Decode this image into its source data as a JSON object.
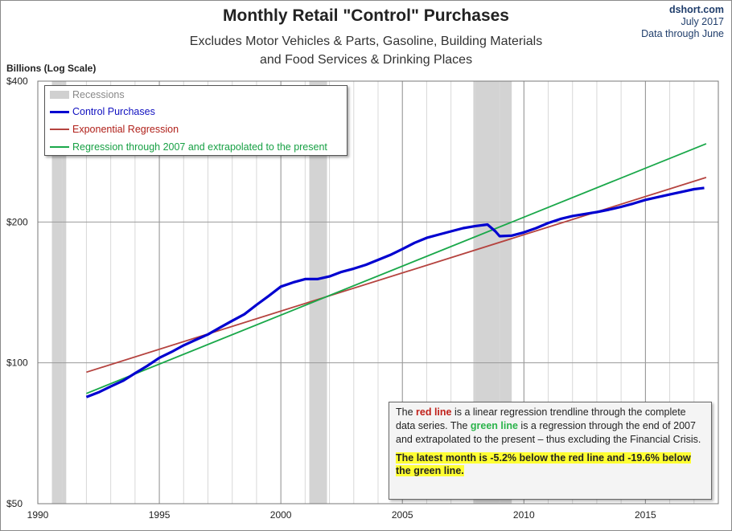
{
  "header": {
    "title": "Monthly Retail \"Control\" Purchases",
    "subtitle_line1": "Excludes Motor Vehicles & Parts, Gasoline, Building Materials",
    "subtitle_line2": "and Food Services & Drinking Places",
    "source_line1": "dshort.com",
    "source_line2": "July 2017",
    "source_line3": "Data through June"
  },
  "chart_data": {
    "type": "line",
    "title": "Monthly Retail \"Control\" Purchases",
    "ylabel": "Billions (Log Scale)",
    "xlabel": "",
    "y_scale": "log",
    "ylim": [
      50,
      400
    ],
    "xlim": [
      1990,
      2018
    ],
    "y_ticks": [
      {
        "value": 50,
        "label": "$50"
      },
      {
        "value": 100,
        "label": "$100"
      },
      {
        "value": 200,
        "label": "$200"
      },
      {
        "value": 400,
        "label": "$400"
      }
    ],
    "x_ticks": [
      {
        "value": 1990,
        "label": "1990"
      },
      {
        "value": 1995,
        "label": "1995"
      },
      {
        "value": 2000,
        "label": "2000"
      },
      {
        "value": 2005,
        "label": "2005"
      },
      {
        "value": 2010,
        "label": "2010"
      },
      {
        "value": 2015,
        "label": "2015"
      }
    ],
    "grid": true,
    "recessions": [
      [
        1990.58,
        1991.17
      ],
      [
        2001.17,
        2001.9
      ],
      [
        2007.92,
        2009.5
      ]
    ],
    "series": [
      {
        "name": "Control Purchases",
        "color": "#0000d0",
        "points": [
          [
            1992.0,
            84.5
          ],
          [
            1992.5,
            86.5
          ],
          [
            1993.0,
            89.0
          ],
          [
            1993.5,
            91.5
          ],
          [
            1994.0,
            95.0
          ],
          [
            1994.5,
            98.5
          ],
          [
            1995.0,
            102.5
          ],
          [
            1995.5,
            105.5
          ],
          [
            1996.0,
            109.0
          ],
          [
            1996.5,
            112.0
          ],
          [
            1997.0,
            115.0
          ],
          [
            1997.5,
            119.0
          ],
          [
            1998.0,
            123.0
          ],
          [
            1998.5,
            127.0
          ],
          [
            1999.0,
            133.0
          ],
          [
            1999.5,
            139.0
          ],
          [
            2000.0,
            145.5
          ],
          [
            2000.5,
            148.5
          ],
          [
            2001.0,
            151.0
          ],
          [
            2001.5,
            151.0
          ],
          [
            2002.0,
            153.0
          ],
          [
            2002.5,
            156.5
          ],
          [
            2003.0,
            159.0
          ],
          [
            2003.5,
            162.0
          ],
          [
            2004.0,
            166.0
          ],
          [
            2004.5,
            170.0
          ],
          [
            2005.0,
            175.0
          ],
          [
            2005.5,
            180.5
          ],
          [
            2006.0,
            185.0
          ],
          [
            2006.5,
            188.0
          ],
          [
            2007.0,
            191.0
          ],
          [
            2007.5,
            194.0
          ],
          [
            2008.0,
            196.0
          ],
          [
            2008.5,
            197.5
          ],
          [
            2008.83,
            191.0
          ],
          [
            2009.0,
            186.5
          ],
          [
            2009.5,
            187.0
          ],
          [
            2010.0,
            190.0
          ],
          [
            2010.5,
            194.0
          ],
          [
            2011.0,
            199.0
          ],
          [
            2011.5,
            203.0
          ],
          [
            2012.0,
            206.0
          ],
          [
            2012.5,
            208.0
          ],
          [
            2013.0,
            210.0
          ],
          [
            2013.5,
            212.5
          ],
          [
            2014.0,
            215.5
          ],
          [
            2014.5,
            219.0
          ],
          [
            2015.0,
            223.0
          ],
          [
            2015.5,
            226.0
          ],
          [
            2016.0,
            229.0
          ],
          [
            2016.5,
            232.0
          ],
          [
            2017.0,
            235.0
          ],
          [
            2017.42,
            236.5
          ]
        ]
      },
      {
        "name": "Exponential Regression",
        "color": "#b5433f",
        "points": [
          [
            1992.0,
            95.5
          ],
          [
            2017.5,
            249.0
          ]
        ]
      },
      {
        "name": "Regression through 2007 and extrapolated to the present",
        "color": "#1aa84a",
        "points": [
          [
            1992.0,
            86.0
          ],
          [
            2017.5,
            294.0
          ]
        ]
      }
    ],
    "legend": {
      "placement": "top-left",
      "entries": [
        "Recessions",
        "Control Purchases",
        "Exponential Regression",
        "Regression through 2007 and extrapolated to the present"
      ]
    },
    "annotation": {
      "part1": "The ",
      "red_text": "red line",
      "part2": " is a  linear regression trendline  through the complete data series. The ",
      "green_text": "green line",
      "part3": " is a regression through the end of 2007 and extrapolated to the present – thus excluding the Financial Crisis.",
      "highlight": "The latest month is  -5.2%  below the red line and -19.6% below the green line."
    }
  }
}
